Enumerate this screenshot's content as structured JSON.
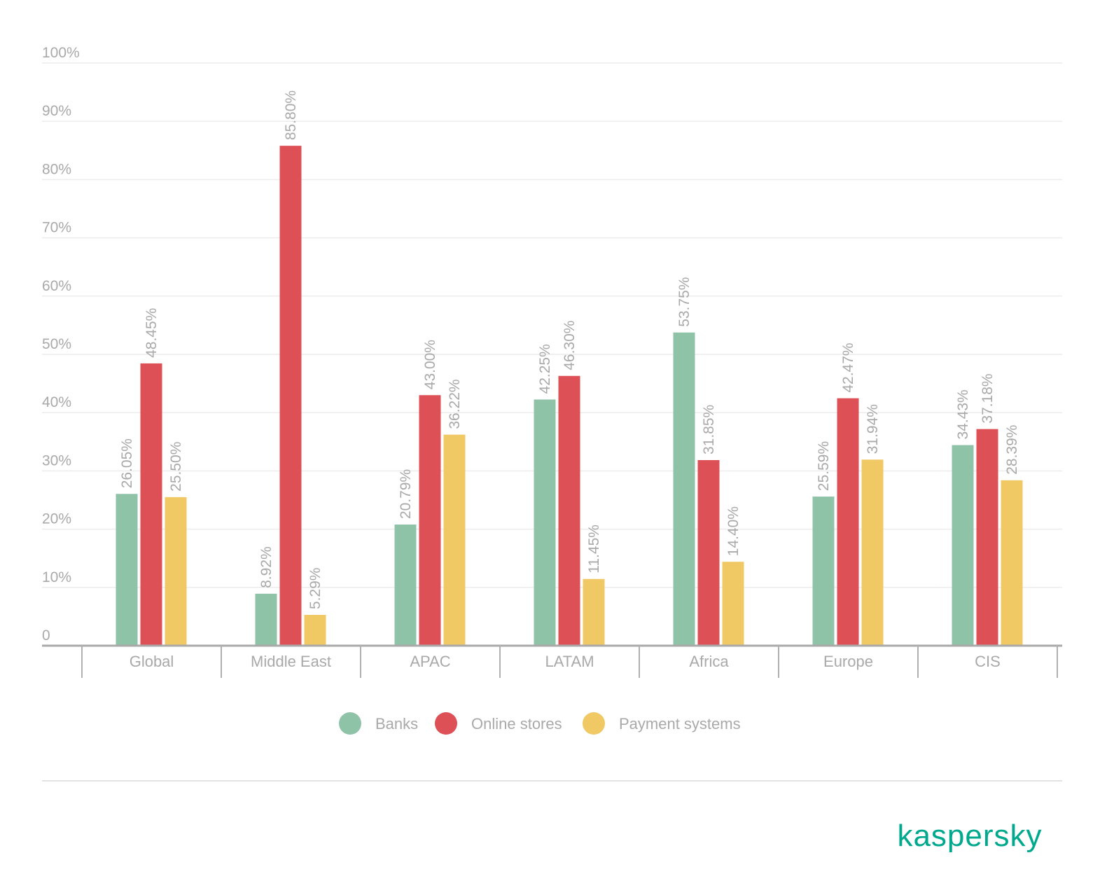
{
  "chart_data": {
    "type": "bar",
    "categories": [
      "Global",
      "Middle East",
      "APAC",
      "LATAM",
      "Africa",
      "Europe",
      "CIS"
    ],
    "series": [
      {
        "name": "Banks",
        "color": "#8fc3a8",
        "values": [
          26.05,
          8.92,
          20.79,
          42.25,
          53.75,
          25.59,
          34.43
        ],
        "labels": [
          "26.05%",
          "8.92%",
          "20.79%",
          "42.25%",
          "53.75%",
          "25.59%",
          "34.43%"
        ]
      },
      {
        "name": "Online stores",
        "color": "#dd5055",
        "values": [
          48.45,
          85.8,
          43.0,
          46.3,
          31.85,
          42.47,
          37.18
        ],
        "labels": [
          "48.45%",
          "85.80%",
          "43.00%",
          "46.30%",
          "31.85%",
          "42.47%",
          "37.18%"
        ]
      },
      {
        "name": "Payment systems",
        "color": "#f0c965",
        "values": [
          25.5,
          5.29,
          36.22,
          11.45,
          14.4,
          31.94,
          28.39
        ],
        "labels": [
          "25.50%",
          "5.29%",
          "36.22%",
          "11.45%",
          "14.40%",
          "31.94%",
          "28.39%"
        ]
      }
    ],
    "ylim": [
      0,
      100
    ],
    "yticks": [
      0,
      10,
      20,
      30,
      40,
      50,
      60,
      70,
      80,
      90,
      100
    ],
    "ytick_labels": [
      "0",
      "10%",
      "20%",
      "30%",
      "40%",
      "50%",
      "60%",
      "70%",
      "80%",
      "90%",
      "100%"
    ],
    "grid": true,
    "legend_position": "bottom"
  },
  "brand": {
    "logo_text": "kaspersky",
    "color": "#00a88e"
  }
}
